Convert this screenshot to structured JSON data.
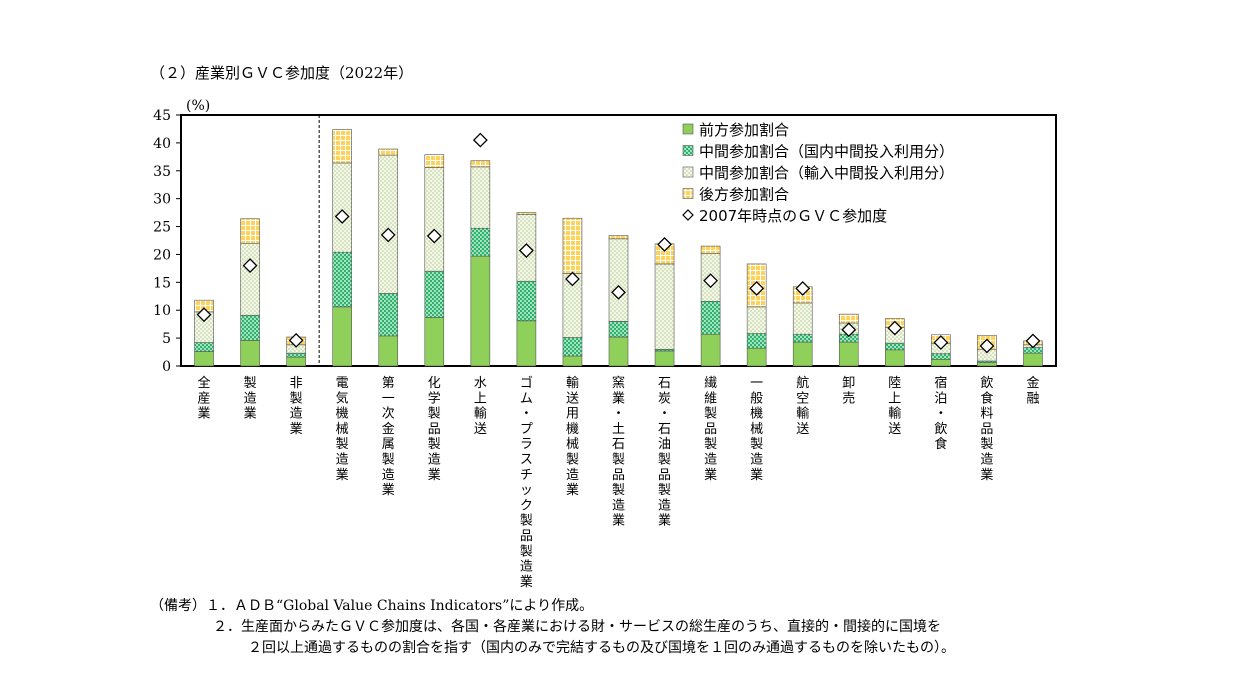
{
  "title": "（２）産業別ＧＶＣ参加度（2022年）",
  "chart_data": {
    "type": "bar",
    "stacked": true,
    "title": "（２）産業別ＧＶＣ参加度（2022年）",
    "ylabel": "(%)",
    "ylim": [
      0,
      45
    ],
    "yticks": [
      "0",
      "5",
      "10",
      "15",
      "20",
      "25",
      "30",
      "35",
      "40",
      "45"
    ],
    "grid": false,
    "legend_position": "top-right",
    "categories": [
      "全産業",
      "製造業",
      "非製造業",
      "電気機械製造業",
      "第一次金属製造業",
      "化学製品製造業",
      "水上輸送",
      "ゴム・プラスチック製品製造業",
      "輸送用機械製造業",
      "窯業・土石製品製造業",
      "石炭・石油製品製造業",
      "繊維製品製造業",
      "一般機械製造業",
      "航空輸送",
      "卸売",
      "陸上輸送",
      "宿泊・飲食",
      "飲食料品製造業",
      "金融"
    ],
    "series": [
      {
        "name": "前方参加割合",
        "color": "#8fd05a",
        "pattern": "solid",
        "values": [
          2.6,
          4.6,
          1.6,
          10.6,
          5.4,
          8.7,
          19.7,
          8.1,
          1.8,
          5.2,
          2.7,
          5.7,
          3.2,
          4.3,
          4.3,
          2.9,
          1.2,
          0.6,
          2.3
        ]
      },
      {
        "name": "中間参加割合（国内中間投入利用分）",
        "color": "#2ab56b",
        "pattern": "dots",
        "values": [
          1.6,
          4.5,
          0.7,
          9.8,
          7.6,
          8.3,
          5.0,
          7.1,
          3.3,
          2.8,
          0.3,
          5.9,
          2.6,
          1.4,
          1.4,
          1.2,
          1.0,
          0.3,
          1.0
        ]
      },
      {
        "name": "中間参加割合（輸入中間投入利用分）",
        "color": "#eef5d6",
        "pattern": "stipple",
        "values": [
          5.5,
          12.9,
          1.5,
          16.0,
          24.8,
          18.6,
          11.0,
          12.0,
          11.5,
          14.8,
          15.3,
          8.6,
          4.8,
          5.6,
          2.0,
          2.8,
          1.8,
          2.1,
          0.5
        ]
      },
      {
        "name": "後方参加割合",
        "color": "#ffd25a",
        "pattern": "grid",
        "values": [
          2.1,
          4.4,
          1.4,
          6.0,
          1.1,
          2.3,
          1.1,
          0.3,
          9.9,
          0.6,
          3.6,
          1.3,
          7.7,
          2.9,
          1.6,
          1.6,
          1.6,
          2.5,
          0.7
        ]
      }
    ],
    "markers": {
      "name": "2007年時点のＧＶＣ参加度",
      "values": [
        9.2,
        18.0,
        4.6,
        26.8,
        23.5,
        23.3,
        40.5,
        20.7,
        15.6,
        13.2,
        21.8,
        15.3,
        13.9,
        13.9,
        6.5,
        6.8,
        4.2,
        3.6,
        4.5
      ]
    }
  },
  "notes": {
    "label": "（備考）",
    "line1": "１．ＡＤＢ“Global Value Chains Indicators”により作成。",
    "line2": "２．生産面からみたＧＶＣ参加度は、各国・各産業における財・サービスの総生産のうち、直接的・間接的に国境を",
    "line3": "２回以上通過するものの割合を指す（国内のみで完結するもの及び国境を１回のみ通過するものを除いたもの）。"
  }
}
